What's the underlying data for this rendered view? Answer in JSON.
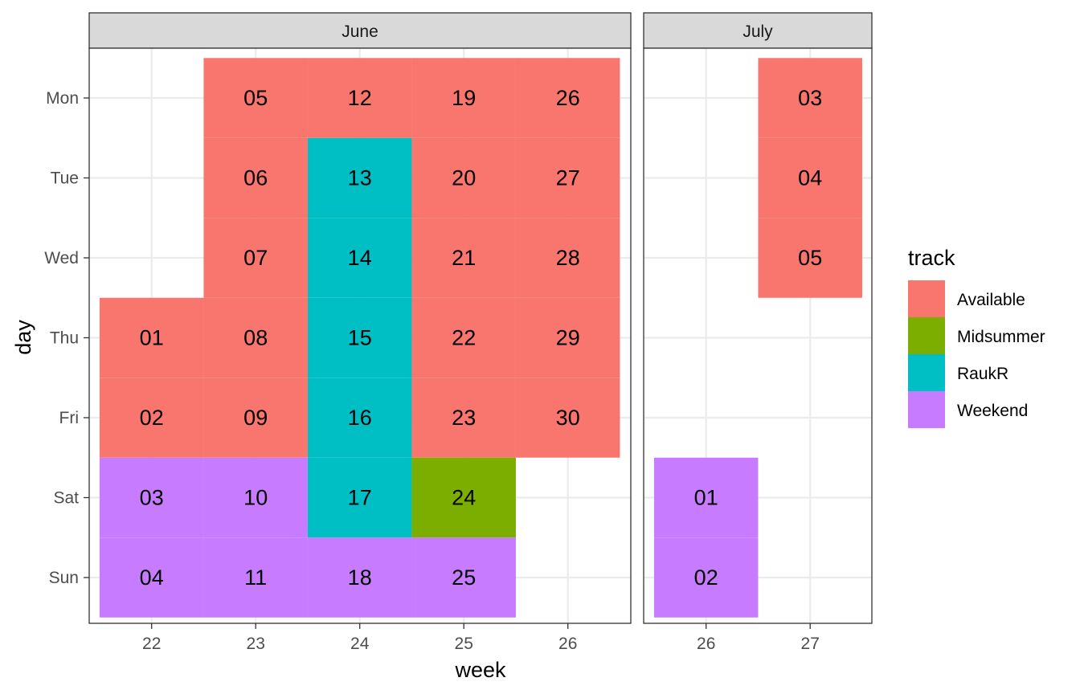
{
  "chart_data": {
    "type": "heatmap",
    "xlabel": "week",
    "ylabel": "day",
    "days": [
      "Mon",
      "Tue",
      "Wed",
      "Thu",
      "Fri",
      "Sat",
      "Sun"
    ],
    "grid": true,
    "legend_position": "right",
    "legend": {
      "title": "track",
      "entries": [
        {
          "label": "Available",
          "color": "#F8766D"
        },
        {
          "label": "Midsummer",
          "color": "#7CAE00"
        },
        {
          "label": "RaukR",
          "color": "#00BFC4"
        },
        {
          "label": "Weekend",
          "color": "#C77CFF"
        }
      ]
    },
    "panels": [
      {
        "title": "June",
        "weeks": [
          22,
          23,
          24,
          25,
          26
        ],
        "cells": [
          {
            "week": 22,
            "day": "Thu",
            "label": "01",
            "track": "Available"
          },
          {
            "week": 22,
            "day": "Fri",
            "label": "02",
            "track": "Available"
          },
          {
            "week": 22,
            "day": "Sat",
            "label": "03",
            "track": "Weekend"
          },
          {
            "week": 22,
            "day": "Sun",
            "label": "04",
            "track": "Weekend"
          },
          {
            "week": 23,
            "day": "Mon",
            "label": "05",
            "track": "Available"
          },
          {
            "week": 23,
            "day": "Tue",
            "label": "06",
            "track": "Available"
          },
          {
            "week": 23,
            "day": "Wed",
            "label": "07",
            "track": "Available"
          },
          {
            "week": 23,
            "day": "Thu",
            "label": "08",
            "track": "Available"
          },
          {
            "week": 23,
            "day": "Fri",
            "label": "09",
            "track": "Available"
          },
          {
            "week": 23,
            "day": "Sat",
            "label": "10",
            "track": "Weekend"
          },
          {
            "week": 23,
            "day": "Sun",
            "label": "11",
            "track": "Weekend"
          },
          {
            "week": 24,
            "day": "Mon",
            "label": "12",
            "track": "Available"
          },
          {
            "week": 24,
            "day": "Tue",
            "label": "13",
            "track": "RaukR"
          },
          {
            "week": 24,
            "day": "Wed",
            "label": "14",
            "track": "RaukR"
          },
          {
            "week": 24,
            "day": "Thu",
            "label": "15",
            "track": "RaukR"
          },
          {
            "week": 24,
            "day": "Fri",
            "label": "16",
            "track": "RaukR"
          },
          {
            "week": 24,
            "day": "Sat",
            "label": "17",
            "track": "RaukR"
          },
          {
            "week": 24,
            "day": "Sun",
            "label": "18",
            "track": "Weekend"
          },
          {
            "week": 25,
            "day": "Mon",
            "label": "19",
            "track": "Available"
          },
          {
            "week": 25,
            "day": "Tue",
            "label": "20",
            "track": "Available"
          },
          {
            "week": 25,
            "day": "Wed",
            "label": "21",
            "track": "Available"
          },
          {
            "week": 25,
            "day": "Thu",
            "label": "22",
            "track": "Available"
          },
          {
            "week": 25,
            "day": "Fri",
            "label": "23",
            "track": "Available"
          },
          {
            "week": 25,
            "day": "Sat",
            "label": "24",
            "track": "Midsummer"
          },
          {
            "week": 25,
            "day": "Sun",
            "label": "25",
            "track": "Weekend"
          },
          {
            "week": 26,
            "day": "Mon",
            "label": "26",
            "track": "Available"
          },
          {
            "week": 26,
            "day": "Tue",
            "label": "27",
            "track": "Available"
          },
          {
            "week": 26,
            "day": "Wed",
            "label": "28",
            "track": "Available"
          },
          {
            "week": 26,
            "day": "Thu",
            "label": "29",
            "track": "Available"
          },
          {
            "week": 26,
            "day": "Fri",
            "label": "30",
            "track": "Available"
          }
        ]
      },
      {
        "title": "July",
        "weeks": [
          26,
          27
        ],
        "cells": [
          {
            "week": 26,
            "day": "Sat",
            "label": "01",
            "track": "Weekend"
          },
          {
            "week": 26,
            "day": "Sun",
            "label": "02",
            "track": "Weekend"
          },
          {
            "week": 27,
            "day": "Mon",
            "label": "03",
            "track": "Available"
          },
          {
            "week": 27,
            "day": "Tue",
            "label": "04",
            "track": "Available"
          },
          {
            "week": 27,
            "day": "Wed",
            "label": "05",
            "track": "Available"
          }
        ]
      }
    ]
  }
}
